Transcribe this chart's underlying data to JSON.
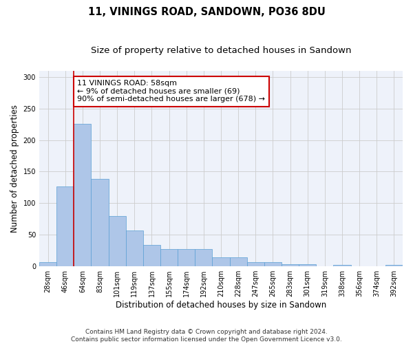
{
  "title": "11, VININGS ROAD, SANDOWN, PO36 8DU",
  "subtitle": "Size of property relative to detached houses in Sandown",
  "xlabel": "Distribution of detached houses by size in Sandown",
  "ylabel": "Number of detached properties",
  "categories": [
    "28sqm",
    "46sqm",
    "64sqm",
    "83sqm",
    "101sqm",
    "119sqm",
    "137sqm",
    "155sqm",
    "174sqm",
    "192sqm",
    "210sqm",
    "228sqm",
    "247sqm",
    "265sqm",
    "283sqm",
    "301sqm",
    "319sqm",
    "338sqm",
    "356sqm",
    "374sqm",
    "392sqm"
  ],
  "values": [
    7,
    126,
    226,
    138,
    80,
    57,
    34,
    27,
    27,
    27,
    14,
    14,
    7,
    7,
    3,
    3,
    0,
    2,
    0,
    0,
    2
  ],
  "bar_color": "#aec6e8",
  "bar_edge_color": "#5a9fd4",
  "annotation_text": "11 VININGS ROAD: 58sqm\n← 9% of detached houses are smaller (69)\n90% of semi-detached houses are larger (678) →",
  "annotation_box_color": "#ffffff",
  "annotation_box_edge_color": "#cc0000",
  "vline_color": "#cc0000",
  "grid_color": "#cccccc",
  "background_color": "#eef2fa",
  "ylim": [
    0,
    310
  ],
  "yticks": [
    0,
    50,
    100,
    150,
    200,
    250,
    300
  ],
  "footer": "Contains HM Land Registry data © Crown copyright and database right 2024.\nContains public sector information licensed under the Open Government Licence v3.0.",
  "title_fontsize": 10.5,
  "subtitle_fontsize": 9.5,
  "xlabel_fontsize": 8.5,
  "ylabel_fontsize": 8.5,
  "tick_fontsize": 7,
  "annotation_fontsize": 8,
  "footer_fontsize": 6.5
}
